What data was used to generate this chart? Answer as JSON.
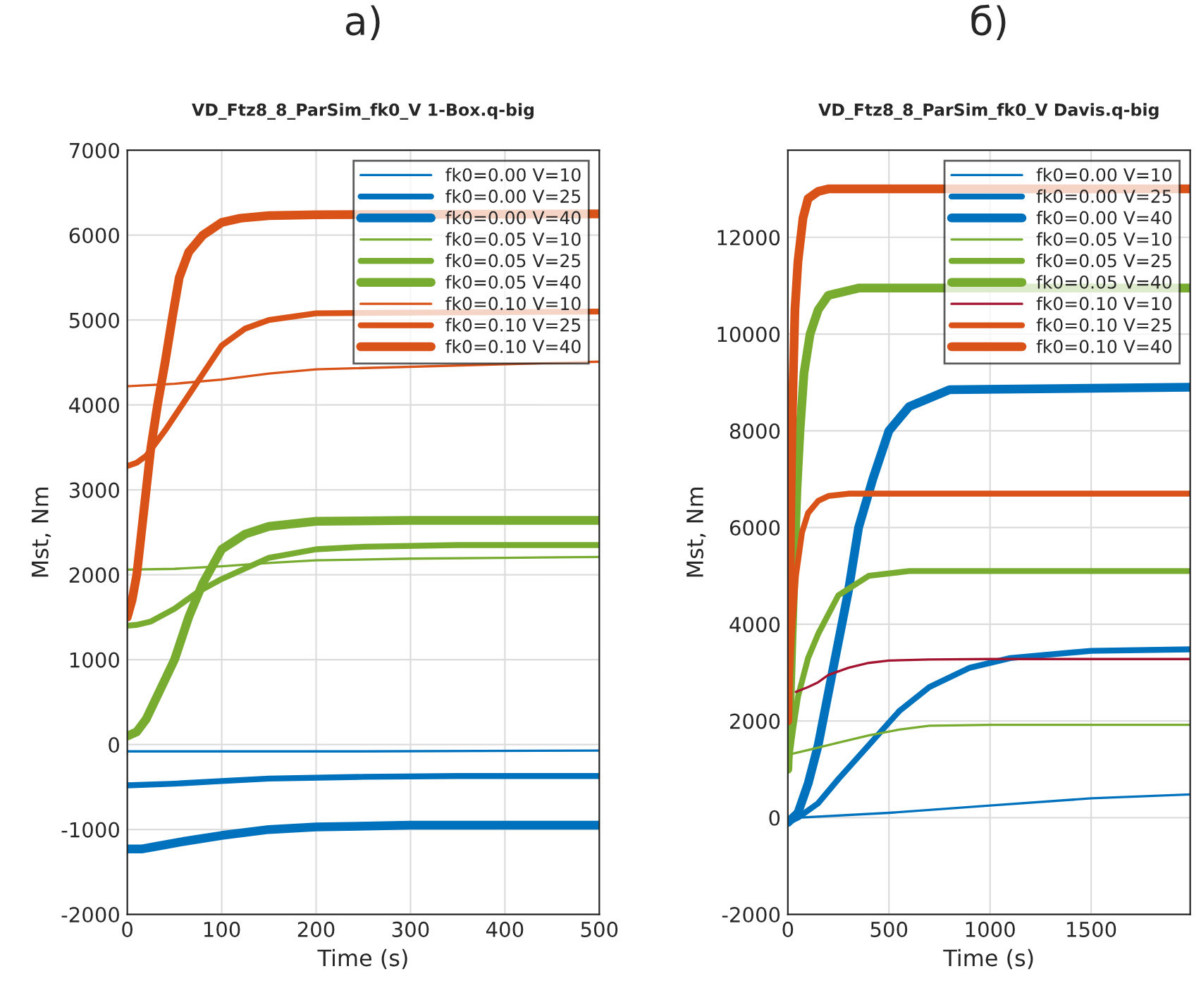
{
  "chart_data": [
    {
      "type": "line",
      "title": "а)",
      "subtitle": "VD_Ftz8_8_ParSim_fk0_V 1-Box.q-big",
      "xlabel": "Time (s)",
      "ylabel": "Mst, Nm",
      "xlim": [
        0,
        500
      ],
      "xticks": [
        0,
        100,
        200,
        300,
        400,
        500
      ],
      "ylim": [
        -2000,
        7000
      ],
      "yticks": [
        -2000,
        -1000,
        0,
        1000,
        2000,
        3000,
        4000,
        5000,
        6000,
        7000
      ],
      "grid": true,
      "legend": "top right",
      "series": [
        {
          "name": "fk0=0.00 V=10",
          "color": "#0072bd",
          "x": [
            0,
            250,
            500
          ],
          "values": [
            -80,
            -80,
            -70
          ]
        },
        {
          "name": "fk0=0.00 V=25",
          "color": "#0072bd",
          "x": [
            0,
            50,
            100,
            150,
            250,
            350,
            500
          ],
          "values": [
            -480,
            -460,
            -430,
            -400,
            -380,
            -370,
            -370
          ]
        },
        {
          "name": "fk0=0.00 V=40",
          "color": "#0072bd",
          "x": [
            0,
            15,
            30,
            60,
            100,
            150,
            200,
            300,
            500
          ],
          "values": [
            -1230,
            -1230,
            -1200,
            -1140,
            -1070,
            -1000,
            -970,
            -950,
            -950
          ]
        },
        {
          "name": "fk0=0.05 V=10",
          "color": "#77ac30",
          "x": [
            0,
            50,
            100,
            150,
            200,
            300,
            400,
            500
          ],
          "values": [
            2060,
            2070,
            2100,
            2140,
            2170,
            2190,
            2200,
            2210
          ]
        },
        {
          "name": "fk0=0.05 V=25",
          "color": "#77ac30",
          "x": [
            0,
            10,
            25,
            50,
            75,
            100,
            150,
            200,
            250,
            350,
            500
          ],
          "values": [
            1400,
            1410,
            1450,
            1600,
            1800,
            1950,
            2200,
            2300,
            2330,
            2350,
            2350
          ]
        },
        {
          "name": "fk0=0.05 V=40",
          "color": "#77ac30",
          "x": [
            0,
            10,
            20,
            35,
            50,
            65,
            80,
            100,
            125,
            150,
            200,
            300,
            500
          ],
          "values": [
            100,
            150,
            300,
            650,
            1000,
            1500,
            1900,
            2300,
            2480,
            2570,
            2630,
            2640,
            2640
          ]
        },
        {
          "name": "fk0=0.10 V=10",
          "color": "#d95319",
          "x": [
            0,
            50,
            100,
            150,
            200,
            500
          ],
          "values": [
            4220,
            4250,
            4300,
            4370,
            4420,
            4510
          ]
        },
        {
          "name": "fk0=0.10 V=25",
          "color": "#d95319",
          "x": [
            0,
            10,
            20,
            40,
            55,
            70,
            85,
            100,
            125,
            150,
            200,
            500
          ],
          "values": [
            3280,
            3320,
            3400,
            3700,
            3950,
            4200,
            4450,
            4700,
            4900,
            5000,
            5080,
            5100
          ]
        },
        {
          "name": "fk0=0.10 V=40",
          "color": "#d95319",
          "x": [
            0,
            5,
            10,
            18,
            25,
            32,
            40,
            48,
            55,
            65,
            80,
            100,
            120,
            150,
            200,
            500
          ],
          "values": [
            1500,
            1700,
            2000,
            2800,
            3500,
            4000,
            4500,
            5050,
            5500,
            5800,
            6000,
            6150,
            6200,
            6230,
            6240,
            6250
          ]
        }
      ]
    },
    {
      "type": "line",
      "title": "б)",
      "subtitle": "VD_Ftz8_8_ParSim_fk0_V Davis.q-big",
      "xlabel": "Time (s)",
      "ylabel": "Mst, Nm",
      "xlim": [
        0,
        1990
      ],
      "xticks": [
        0,
        500,
        1000,
        1500
      ],
      "ylim": [
        -2000,
        13800
      ],
      "yticks": [
        -2000,
        0,
        2000,
        4000,
        6000,
        8000,
        10000,
        12000
      ],
      "grid": true,
      "legend": "top right",
      "series": [
        {
          "name": "fk0=0.00 V=10",
          "color": "#0072bd",
          "x": [
            0,
            50,
            500,
            1000,
            1500,
            1990
          ],
          "values": [
            -100,
            0,
            100,
            250,
            400,
            480
          ]
        },
        {
          "name": "fk0=0.00 V=25",
          "color": "#0072bd",
          "x": [
            0,
            50,
            150,
            250,
            400,
            550,
            700,
            900,
            1100,
            1500,
            1990
          ],
          "values": [
            -100,
            0,
            300,
            800,
            1500,
            2200,
            2700,
            3100,
            3300,
            3450,
            3480
          ]
        },
        {
          "name": "fk0=0.00 V=40",
          "color": "#0072bd",
          "x": [
            0,
            50,
            100,
            150,
            220,
            300,
            350,
            420,
            500,
            600,
            800,
            1990
          ],
          "values": [
            -100,
            100,
            700,
            1500,
            3000,
            4700,
            6000,
            7000,
            8000,
            8500,
            8850,
            8900
          ]
        },
        {
          "name": "fk0=0.05 V=10",
          "color": "#77ac30",
          "x": [
            0,
            100,
            250,
            400,
            550,
            700,
            1000,
            1500,
            1990
          ],
          "values": [
            1300,
            1400,
            1550,
            1700,
            1820,
            1900,
            1920,
            1920,
            1920
          ]
        },
        {
          "name": "fk0=0.05 V=25",
          "color": "#77ac30",
          "x": [
            0,
            25,
            50,
            100,
            150,
            250,
            400,
            600,
            1000,
            1990
          ],
          "values": [
            1000,
            1800,
            2500,
            3300,
            3800,
            4600,
            5000,
            5100,
            5100,
            5100
          ]
        },
        {
          "name": "fk0=0.05 V=40",
          "color": "#77ac30",
          "x": [
            0,
            15,
            30,
            45,
            60,
            80,
            110,
            150,
            200,
            350,
            1000,
            1990
          ],
          "values": [
            1000,
            3000,
            5000,
            6800,
            8000,
            9200,
            10000,
            10500,
            10800,
            10950,
            10950,
            10950
          ]
        },
        {
          "name": "fk0=0.10 V=10",
          "color": "#a2142f",
          "x": [
            40,
            100,
            150,
            200,
            300,
            400,
            500,
            700,
            1000,
            1990
          ],
          "values": [
            2600,
            2700,
            2800,
            2950,
            3100,
            3200,
            3250,
            3270,
            3280,
            3280
          ]
        },
        {
          "name": "fk0=0.10 V=25",
          "color": "#d95319",
          "x": [
            0,
            20,
            40,
            70,
            100,
            150,
            200,
            300,
            1000,
            1990
          ],
          "values": [
            2000,
            3800,
            5000,
            5900,
            6300,
            6550,
            6650,
            6700,
            6700,
            6700
          ]
        },
        {
          "name": "fk0=0.10 V=40",
          "color": "#d95319",
          "x": [
            0,
            10,
            20,
            35,
            50,
            75,
            100,
            150,
            200,
            500,
            1990
          ],
          "values": [
            2000,
            5000,
            8000,
            10500,
            11500,
            12400,
            12800,
            12950,
            13000,
            13000,
            13000
          ]
        }
      ]
    }
  ]
}
